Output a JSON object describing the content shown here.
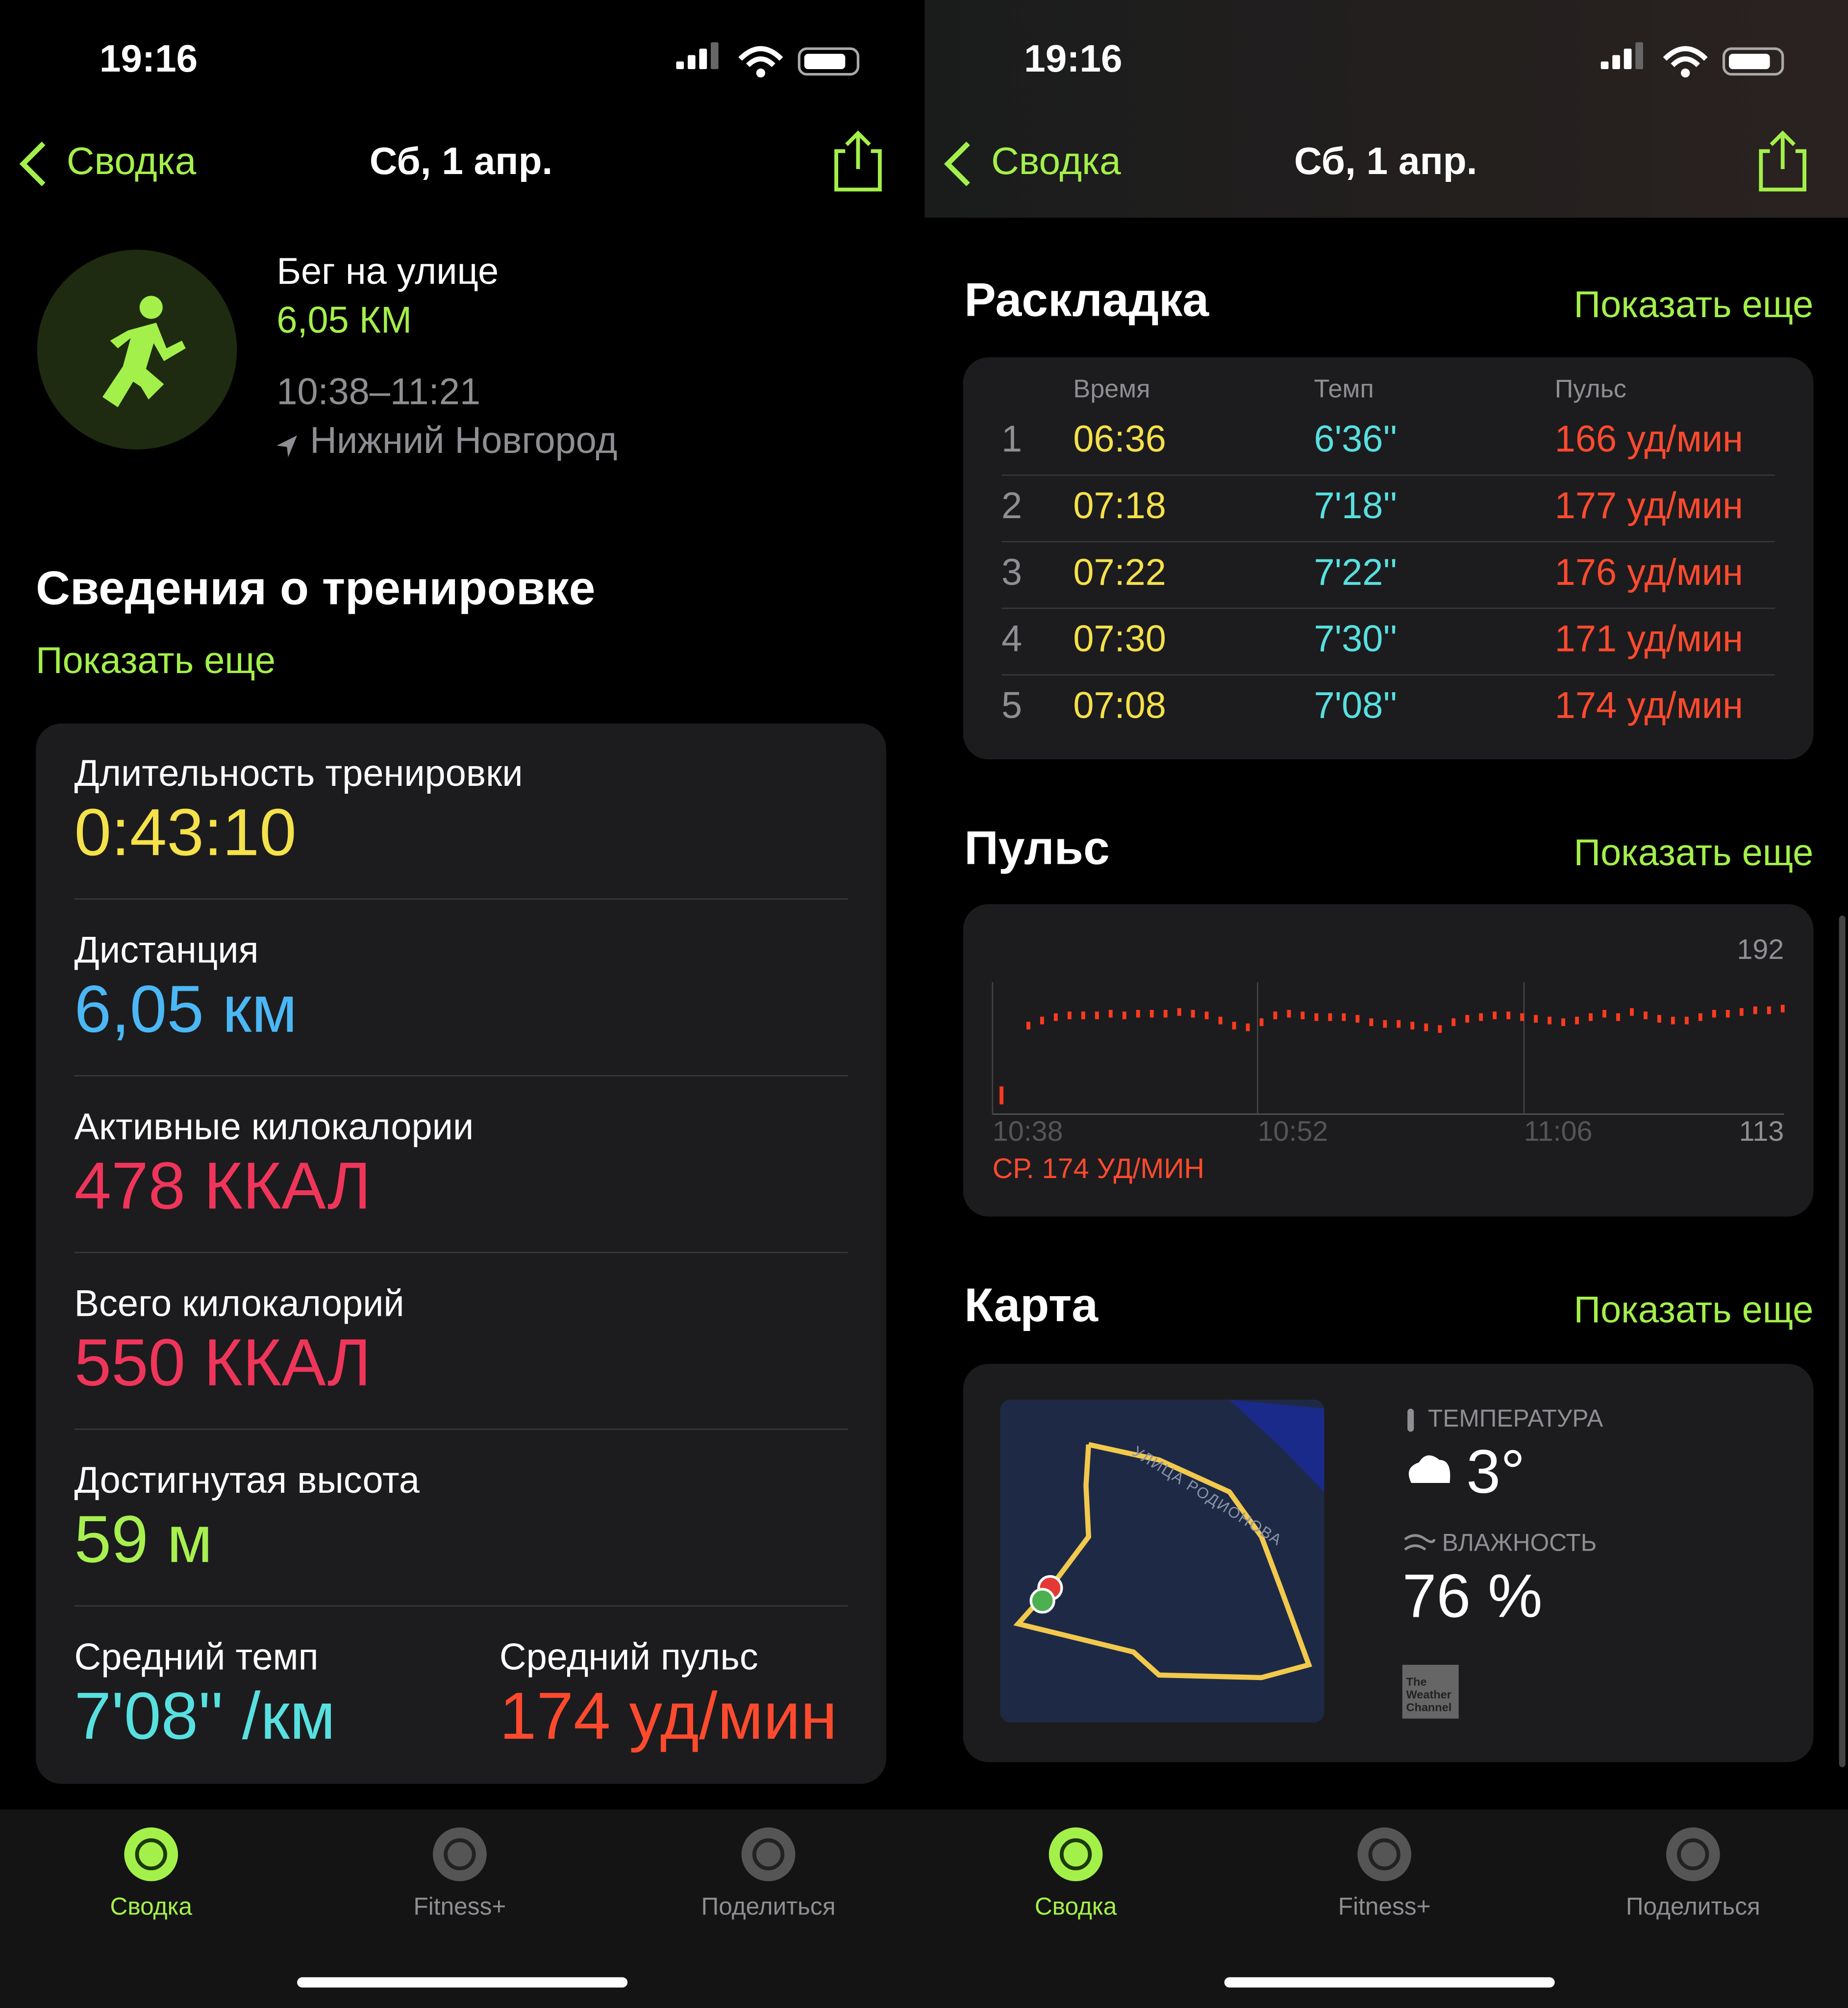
{
  "screens": [
    {
      "status_time": "19:16",
      "back": "Сводка",
      "title": "Сб, 1 апр.",
      "tabs": [
        "Сводка",
        "Fitness+",
        "Поделиться"
      ]
    },
    {
      "status_time": "19:16",
      "back": "Сводка",
      "title": "Сб, 1 апр.",
      "tabs": [
        "Сводка",
        "Fitness+",
        "Поделиться"
      ]
    }
  ],
  "workout": {
    "name": "Бег на улице",
    "distance": "6,05 КМ",
    "time": "10:38–11:21",
    "location": "Нижний Новгород"
  },
  "details": {
    "title": "Сведения о тренировке",
    "show_more": "Показать еще",
    "metrics": [
      {
        "label": "Длительность тренировки",
        "value": "0:43:10"
      },
      {
        "label": "Дистанция",
        "value": "6,05 км"
      },
      {
        "label": "Активные килокалории",
        "value": "478 ККАЛ"
      },
      {
        "label": "Всего килокалорий",
        "value": "550 ККАЛ"
      },
      {
        "label": "Достигнутая высота",
        "value": "59 м"
      }
    ],
    "pace": {
      "label": "Средний темп",
      "value": "7'08'' /км"
    },
    "heart": {
      "label": "Средний пульс",
      "value": "174 уд/мин"
    }
  },
  "splits": {
    "title": "Раскладка",
    "show_more": "Показать еще",
    "headers": [
      "Время",
      "Темп",
      "Пульс"
    ],
    "rows": [
      [
        "1",
        "06:36",
        "6'36''",
        "166 уд/мин"
      ],
      [
        "2",
        "07:18",
        "7'18''",
        "177 уд/мин"
      ],
      [
        "3",
        "07:22",
        "7'22''",
        "176 уд/мин"
      ],
      [
        "4",
        "07:30",
        "7'30''",
        "171 уд/мин"
      ],
      [
        "5",
        "07:08",
        "7'08''",
        "174 уд/мин"
      ]
    ]
  },
  "heart_rate": {
    "title": "Пульс",
    "show_more": "Показать еще",
    "ylim": [
      113,
      192
    ],
    "xticks": [
      "10:38",
      "10:52",
      "11:06"
    ],
    "average": "СР. 174 УД/МИН",
    "values": [
      124,
      165,
      168,
      170,
      171,
      171,
      171,
      172,
      171,
      172,
      172,
      172,
      173,
      172,
      171,
      168,
      165,
      164,
      167,
      171,
      172,
      171,
      170,
      170,
      170,
      169,
      167,
      166,
      166,
      165,
      164,
      163,
      167,
      169,
      170,
      171,
      171,
      170,
      169,
      168,
      167,
      168,
      170,
      172,
      170,
      173,
      171,
      169,
      168,
      168,
      170,
      172,
      172,
      173,
      174,
      174,
      175
    ]
  },
  "map": {
    "title": "Карта",
    "show_more": "Показать еще",
    "street": "УЛИЦА РОДИОНОВА",
    "temperature_label": "ТЕМПЕРАТУРА",
    "temperature": "3°",
    "humidity_label": "ВЛАЖНОСТЬ",
    "humidity": "76 %",
    "weather_logo": "The Weather Channel"
  }
}
